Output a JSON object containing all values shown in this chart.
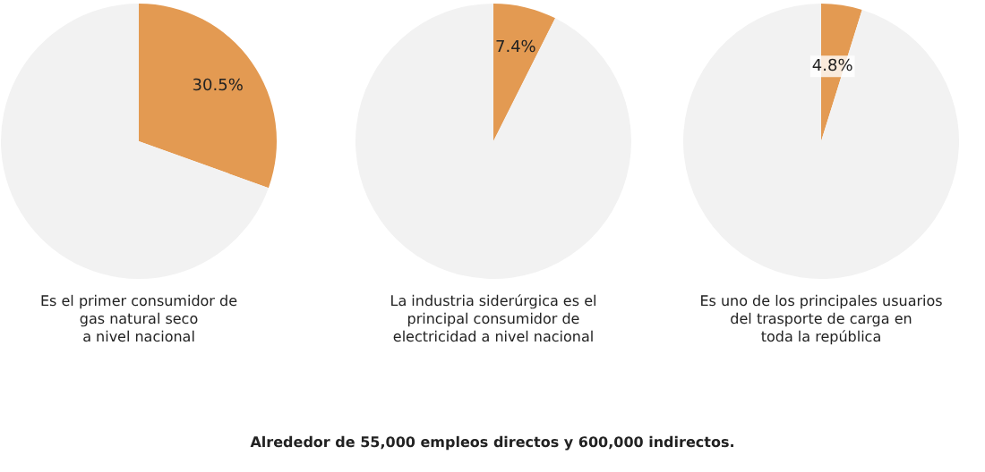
{
  "chart_data": [
    {
      "type": "pie",
      "categories": [
        null,
        null
      ],
      "values": [
        30.5,
        69.5
      ],
      "colors": [
        "#e39a52",
        "#f2f2f2"
      ],
      "value_labels": [
        "30.5%",
        null
      ],
      "annotations": [
        "Es el primer consumidor de\ngas natural seco\na nivel nacional"
      ]
    },
    {
      "type": "pie",
      "categories": [
        null,
        null
      ],
      "values": [
        7.4,
        92.6
      ],
      "colors": [
        "#e39a52",
        "#f2f2f2"
      ],
      "value_labels": [
        "7.4%",
        null
      ],
      "annotations": [
        "La industria siderúrgica es el\nprincipal consumidor de\nelectricidad a nivel nacional"
      ]
    },
    {
      "type": "pie",
      "categories": [
        null,
        null
      ],
      "values": [
        4.8,
        95.2
      ],
      "colors": [
        "#e39a52",
        "#f2f2f2"
      ],
      "value_labels": [
        "4.8%",
        null
      ],
      "annotations": [
        "Es uno de los principales usuarios\ndel trasporte de carga en\ntoda la república"
      ]
    },
    {
      "type": "other",
      "annotations": [
        "Alrededor de 55,000 empleos directos y 600,000 indirectos."
      ]
    }
  ]
}
